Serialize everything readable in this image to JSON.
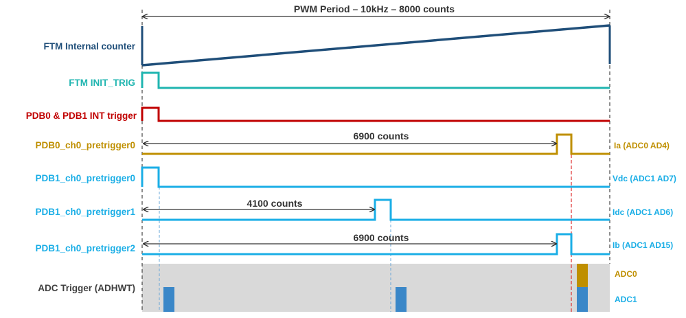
{
  "header": {
    "period_label": "PWM Period – 10kHz – 8000 counts"
  },
  "rows": [
    {
      "label": "FTM Internal counter",
      "color": "#1f4e79"
    },
    {
      "label": "FTM INIT_TRIG",
      "color": "#1fb5b0"
    },
    {
      "label": "PDB0 & PDB1 INT trigger",
      "color": "#c00000"
    },
    {
      "label": "PDB0_ch0_pretrigger0",
      "color": "#bf8f00"
    },
    {
      "label": "PDB1_ch0_pretrigger0",
      "color": "#1aaee6"
    },
    {
      "label": "PDB1_ch0_pretrigger1",
      "color": "#1aaee6"
    },
    {
      "label": "PDB1_ch0_pretrigger2",
      "color": "#1aaee6"
    },
    {
      "label": "ADC Trigger (ADHWT)",
      "color": "#404040"
    }
  ],
  "annotations": {
    "pdb0_delay": "6900 counts",
    "pdb1_pretrigger1_delay": "4100 counts",
    "pdb1_pretrigger2_delay": "6900 counts"
  },
  "channels": {
    "ia": "Ia (ADC0 AD4)",
    "vdc": "Vdc (ADC1 AD7)",
    "idc": "Idc (ADC1 AD6)",
    "ib": "Ib (ADC1 AD15)"
  },
  "adc_legend": {
    "adc0": "ADC0",
    "adc1": "ADC1"
  },
  "colors": {
    "counter": "#1f4e79",
    "init_trig": "#1fb5b0",
    "pdb_int": "#c00000",
    "adc0": "#bf8f00",
    "adc1_signal": "#1aaee6",
    "adc1_bar": "#3a87c8",
    "adc_bg": "#d9d9d9",
    "guide_blue": "#6aa8d8",
    "guide_red": "#e03030"
  }
}
